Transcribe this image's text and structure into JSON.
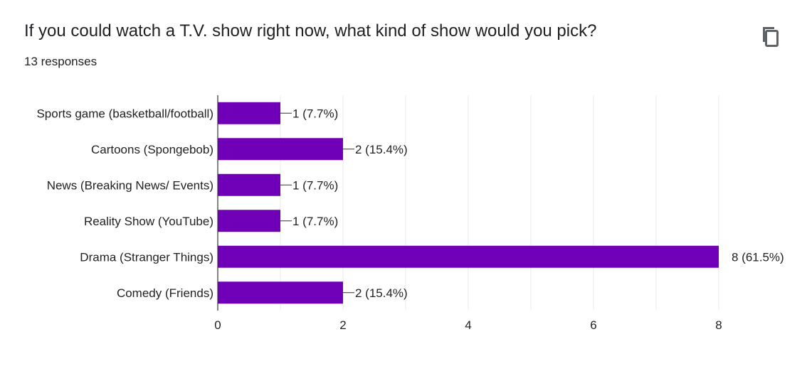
{
  "question": {
    "title": "If you could watch a T.V. show right now, what kind of show would you pick?",
    "responses": "13 responses"
  },
  "toolbar": {
    "copy_icon": "copy-icon"
  },
  "colors": {
    "bar": "#7000b8",
    "grid": "#ebebeb",
    "axis": "#333333",
    "text": "#222222"
  },
  "chart_data": {
    "type": "bar",
    "orientation": "horizontal",
    "categories": [
      "Sports game (basketball/football)",
      "Cartoons (Spongebob)",
      "News (Breaking News/ Events)",
      "Reality Show (YouTube)",
      "Drama (Stranger Things)",
      "Comedy (Friends)"
    ],
    "values": [
      1,
      2,
      1,
      1,
      8,
      2
    ],
    "data_labels": [
      "1 (7.7%)",
      "2 (15.4%)",
      "1 (7.7%)",
      "1 (7.7%)",
      "8 (61.5%)",
      "2 (15.4%)"
    ],
    "xlim": [
      0,
      8
    ],
    "x_ticks": [
      "0",
      "2",
      "4",
      "6",
      "8"
    ],
    "grid": true,
    "legend": "none"
  }
}
